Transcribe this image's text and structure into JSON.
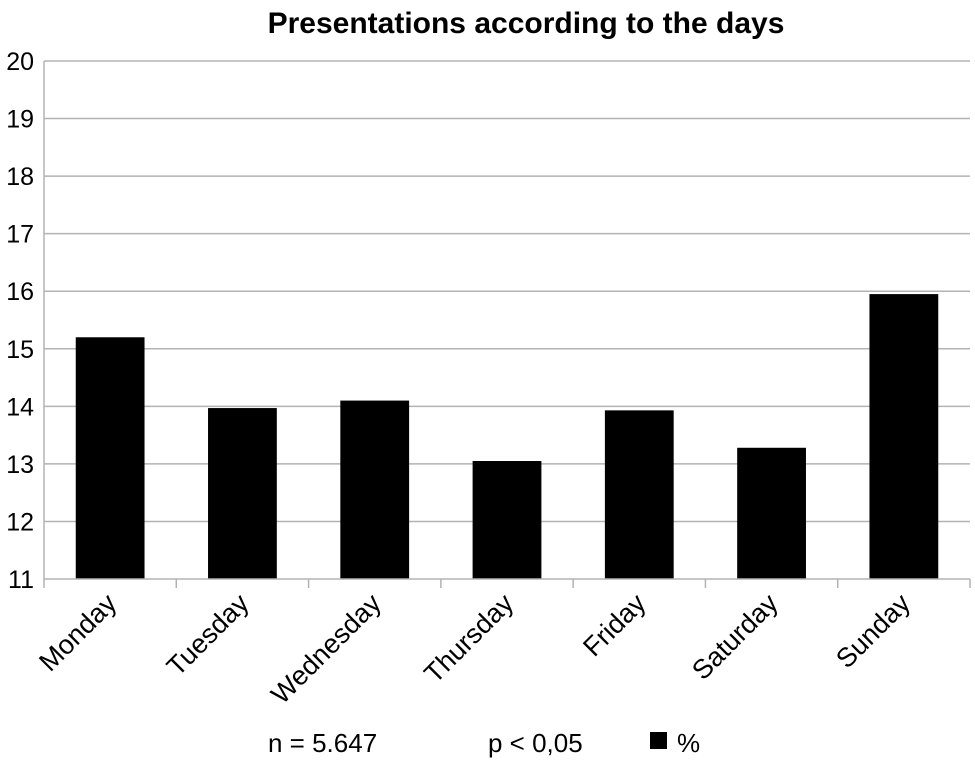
{
  "chart_data": {
    "type": "bar",
    "title": "Presentations according to the days",
    "xlabel": "",
    "ylabel": "",
    "ylim": [
      11,
      20
    ],
    "yticks": [
      11,
      12,
      13,
      14,
      15,
      16,
      17,
      18,
      19,
      20
    ],
    "grid": true,
    "categories": [
      "Monday",
      "Tuesday",
      "Wednesday",
      "Thursday",
      "Friday",
      "Saturday",
      "Sunday"
    ],
    "series": [
      {
        "name": "%",
        "values": [
          15.2,
          13.97,
          14.1,
          13.05,
          13.93,
          13.28,
          15.95
        ],
        "color": "#000000"
      }
    ],
    "legend": {
      "position": "bottom",
      "label": "%"
    },
    "annotations": [
      "n = 5.647",
      "p < 0,05"
    ]
  }
}
